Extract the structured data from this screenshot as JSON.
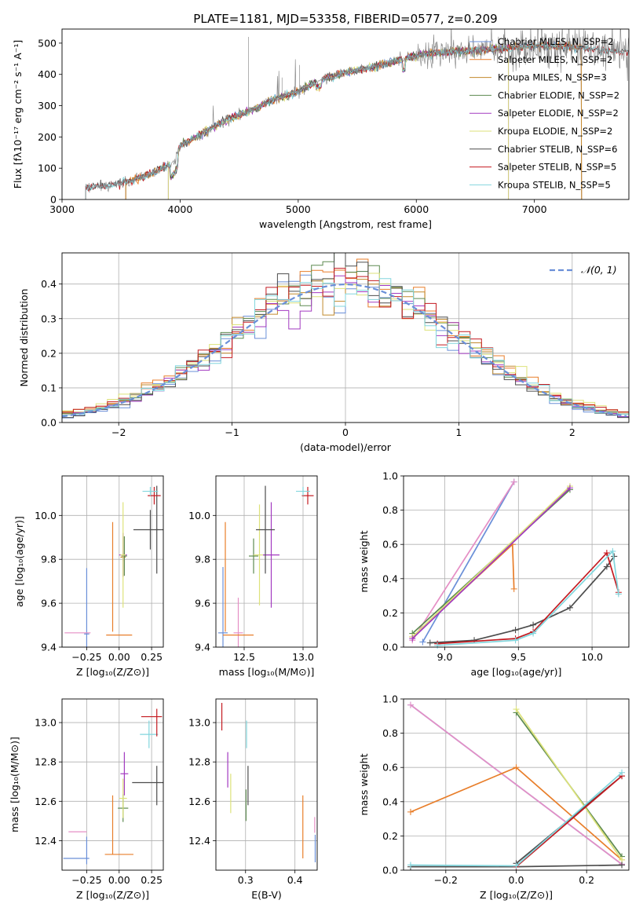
{
  "colors": {
    "c_miles": "#6a8fd8",
    "s_miles": "#e87e2a",
    "k_miles": "#c28a2c",
    "c_elodie": "#5d8a50",
    "s_elodie": "#a23ac0",
    "k_elodie": "#dde27a",
    "c_stelib": "#4d4d4d",
    "s_stelib": "#c41a20",
    "k_stelib": "#82d6dd",
    "pink": "#e58fc5",
    "gauss": "#6a8fd8"
  },
  "chart_data": [
    {
      "id": "spectrum",
      "type": "line",
      "title": "PLATE=1181, MJD=53358, FIBERID=0577, z=0.209",
      "xlabel": "wavelength [Angstrom, rest frame]",
      "ylabel": "Flux [fλ10⁻¹⁷ erg cm⁻² s⁻¹ A⁻¹]",
      "xlim": [
        3000,
        7800
      ],
      "ylim": [
        0,
        545
      ],
      "xticks": [
        "3000",
        "4000",
        "5000",
        "6000",
        "7000"
      ],
      "yticks": [
        "0",
        "100",
        "200",
        "300",
        "400",
        "500"
      ],
      "legend": [
        "Chabrier MILES, N_SSP=2",
        "Salpeter MILES, N_SSP=2",
        "Kroupa MILES, N_SSP=3",
        "Chabrier ELODIE, N_SSP=2",
        "Salpeter ELODIE, N_SSP=2",
        "Kroupa ELODIE, N_SSP=2",
        "Chabrier STELIB, N_SSP=6",
        "Salpeter STELIB, N_SSP=5",
        "Kroupa STELIB, N_SSP=5"
      ],
      "legend_position": "right",
      "continuum": {
        "x": [
          3200,
          3400,
          3600,
          3800,
          3950,
          4000,
          4200,
          4400,
          4600,
          4800,
          5000,
          5200,
          5400,
          5600,
          5800,
          6000,
          6200,
          6400,
          6600,
          6800,
          7000,
          7200,
          7400,
          7500,
          7800
        ],
        "y": [
          38,
          45,
          62,
          90,
          120,
          170,
          215,
          255,
          285,
          320,
          345,
          385,
          405,
          420,
          440,
          460,
          470,
          475,
          480,
          485,
          490,
          490,
          485,
          480,
          470
        ]
      }
    },
    {
      "id": "residuals",
      "type": "histogram",
      "xlabel": "(data-model)/error",
      "ylabel": "Normed distribution",
      "xlim": [
        -2.5,
        2.5
      ],
      "ylim": [
        0,
        0.49
      ],
      "xticks": [
        "−2",
        "−1",
        "0",
        "1",
        "2"
      ],
      "yticks": [
        "0.0",
        "0.1",
        "0.2",
        "0.3",
        "0.4"
      ],
      "legend": [
        "𝒩(0, 1)"
      ],
      "legend_position": "top-right",
      "bin_width": 0.1
    },
    {
      "id": "age_vs_Z",
      "type": "errorbar",
      "xlabel": "Z [log₁₀(Z/Z⊙)]",
      "ylabel": "age  [log₁₀(age/yr)]",
      "xlim": [
        -0.44,
        0.34
      ],
      "ylim": [
        9.4,
        10.18
      ],
      "xticks": [
        "−0.25",
        "0.00",
        "0.25"
      ],
      "xtick_values": [
        -0.25,
        0.0,
        0.25
      ],
      "yticks": [
        "9.4",
        "9.6",
        "9.8",
        "10.0"
      ],
      "ytick_values": [
        9.4,
        9.6,
        9.8,
        10.0
      ],
      "points": [
        {
          "c": "c_miles",
          "x": -0.25,
          "y": 9.46,
          "xe": 0.02,
          "ye": 0.3
        },
        {
          "c": "pink",
          "x": -0.32,
          "y": 9.465,
          "xe": 0.1,
          "ye": 0.005
        },
        {
          "c": "s_miles",
          "x": 0.0,
          "y": 9.455,
          "xe": 0.1,
          "ye": 0.005
        },
        {
          "c": "s_miles",
          "x": -0.05,
          "y": 9.72,
          "xe": 0.003,
          "ye": 0.25
        },
        {
          "c": "k_miles",
          "x": 0.03,
          "y": 9.81,
          "xe": 0.02,
          "ye": 0.02
        },
        {
          "c": "c_elodie",
          "x": 0.04,
          "y": 9.815,
          "xe": 0.02,
          "ye": 0.09
        },
        {
          "c": "s_elodie",
          "x": 0.03,
          "y": 9.82,
          "xe": 0.03,
          "ye": 0.1
        },
        {
          "c": "k_elodie",
          "x": 0.03,
          "y": 9.82,
          "xe": 0.02,
          "ye": 0.24
        },
        {
          "c": "c_stelib",
          "x": 0.24,
          "y": 9.935,
          "xe": 0.13,
          "ye": 0.09
        },
        {
          "c": "c_stelib",
          "x": 0.29,
          "y": 9.935,
          "xe": 0.01,
          "ye": 0.2
        },
        {
          "c": "s_stelib",
          "x": 0.27,
          "y": 10.09,
          "xe": 0.05,
          "ye": 0.04
        },
        {
          "c": "k_stelib",
          "x": 0.24,
          "y": 10.11,
          "xe": 0.06,
          "ye": 0.02
        }
      ]
    },
    {
      "id": "age_vs_mass",
      "type": "errorbar",
      "xlabel": "mass [log₁₀(M/M⊙)]",
      "ylabel": "",
      "xlim": [
        12.26,
        13.12
      ],
      "ylim": [
        9.4,
        10.18
      ],
      "xticks": [
        "12.5",
        "13.0"
      ],
      "xtick_values": [
        12.5,
        13.0
      ],
      "yticks": [
        "9.4",
        "9.6",
        "9.8",
        "10.0"
      ],
      "ytick_values": [
        9.4,
        9.6,
        9.8,
        10.0
      ],
      "points": [
        {
          "c": "c_miles",
          "x": 12.32,
          "y": 9.465,
          "xe": 0.04,
          "ye": 0.3
        },
        {
          "c": "pink",
          "x": 12.45,
          "y": 9.465,
          "xe": 0.04,
          "ye": 0.16
        },
        {
          "c": "s_miles",
          "x": 12.45,
          "y": 9.455,
          "xe": 0.13,
          "ye": 0.005
        },
        {
          "c": "s_miles",
          "x": 12.34,
          "y": 9.72,
          "xe": 0.003,
          "ye": 0.25
        },
        {
          "c": "c_elodie",
          "x": 12.58,
          "y": 9.815,
          "xe": 0.04,
          "ye": 0.08
        },
        {
          "c": "k_elodie",
          "x": 12.63,
          "y": 9.82,
          "xe": 0.05,
          "ye": 0.23
        },
        {
          "c": "s_elodie",
          "x": 12.73,
          "y": 9.82,
          "xe": 0.07,
          "ye": 0.24
        },
        {
          "c": "c_stelib",
          "x": 12.68,
          "y": 9.935,
          "xe": 0.08,
          "ye": 0.2
        },
        {
          "c": "s_stelib",
          "x": 13.04,
          "y": 10.09,
          "xe": 0.05,
          "ye": 0.04
        },
        {
          "c": "k_stelib",
          "x": 13.0,
          "y": 10.11,
          "xe": 0.06,
          "ye": 0.02
        }
      ]
    },
    {
      "id": "weight_vs_age",
      "type": "line",
      "xlabel": "age  [log₁₀(age/yr)]",
      "ylabel": "mass weight",
      "xlim": [
        8.72,
        10.25
      ],
      "ylim": [
        0,
        1.0
      ],
      "xticks": [
        "9.0",
        "9.5",
        "10.0"
      ],
      "xtick_values": [
        9.0,
        9.5,
        10.0
      ],
      "yticks": [
        "0.0",
        "0.2",
        "0.4",
        "0.6",
        "0.8",
        "1.0"
      ],
      "ytick_values": [
        0,
        0.2,
        0.4,
        0.6,
        0.8,
        1.0
      ],
      "series": [
        {
          "c": "c_miles",
          "x": [
            8.85,
            9.47
          ],
          "y": [
            0.03,
            0.965
          ]
        },
        {
          "c": "pink",
          "x": [
            8.78,
            9.47
          ],
          "y": [
            0.04,
            0.965
          ]
        },
        {
          "c": "s_miles",
          "x": [
            8.78,
            9.46,
            9.47
          ],
          "y": [
            0.06,
            0.6,
            0.34
          ]
        },
        {
          "c": "c_elodie",
          "x": [
            8.78,
            9.85
          ],
          "y": [
            0.08,
            0.92
          ]
        },
        {
          "c": "k_elodie",
          "x": [
            8.78,
            9.85
          ],
          "y": [
            0.06,
            0.94
          ]
        },
        {
          "c": "s_elodie",
          "x": [
            8.78,
            9.85
          ],
          "y": [
            0.05,
            0.93
          ]
        },
        {
          "c": "c_stelib",
          "x": [
            8.9,
            9.2,
            9.48,
            9.6,
            9.85,
            10.1,
            10.15
          ],
          "y": [
            0.025,
            0.04,
            0.1,
            0.13,
            0.23,
            0.47,
            0.53
          ]
        },
        {
          "c": "s_stelib",
          "x": [
            8.95,
            9.48,
            9.6,
            10.1,
            10.18
          ],
          "y": [
            0.02,
            0.05,
            0.09,
            0.55,
            0.32
          ]
        },
        {
          "c": "k_stelib",
          "x": [
            8.95,
            9.48,
            9.6,
            10.14,
            10.18
          ],
          "y": [
            0.01,
            0.04,
            0.08,
            0.56,
            0.31
          ]
        }
      ]
    },
    {
      "id": "mass_vs_Z",
      "type": "errorbar",
      "xlabel": "Z [log₁₀(Z/Z⊙)]",
      "ylabel": "mass [log₁₀(M/M⊙)]",
      "xlim": [
        -0.44,
        0.34
      ],
      "ylim": [
        12.25,
        13.12
      ],
      "xticks": [
        "−0.25",
        "0.00",
        "0.25"
      ],
      "xtick_values": [
        -0.25,
        0.0,
        0.25
      ],
      "yticks": [
        "12.4",
        "12.6",
        "12.8",
        "13.0"
      ],
      "ytick_values": [
        12.4,
        12.6,
        12.8,
        13.0
      ],
      "points": [
        {
          "c": "c_miles",
          "x": -0.33,
          "y": 12.31,
          "xe": 0.1,
          "ye": 0.005
        },
        {
          "c": "c_miles",
          "x": -0.25,
          "y": 12.35,
          "xe": 0.003,
          "ye": 0.07
        },
        {
          "c": "pink",
          "x": -0.32,
          "y": 12.445,
          "xe": 0.07,
          "ye": 0.005
        },
        {
          "c": "s_miles",
          "x": 0.0,
          "y": 12.33,
          "xe": 0.11,
          "ye": 0.005
        },
        {
          "c": "s_miles",
          "x": -0.05,
          "y": 12.48,
          "xe": 0.003,
          "ye": 0.15
        },
        {
          "c": "c_elodie",
          "x": 0.03,
          "y": 12.565,
          "xe": 0.04,
          "ye": 0.07
        },
        {
          "c": "k_elodie",
          "x": 0.03,
          "y": 12.615,
          "xe": 0.03,
          "ye": 0.1
        },
        {
          "c": "s_elodie",
          "x": 0.04,
          "y": 12.74,
          "xe": 0.03,
          "ye": 0.11
        },
        {
          "c": "c_stelib",
          "x": 0.23,
          "y": 12.695,
          "xe": 0.13,
          "ye": 0.005
        },
        {
          "c": "c_stelib",
          "x": 0.29,
          "y": 12.68,
          "xe": 0.003,
          "ye": 0.1
        },
        {
          "c": "k_stelib",
          "x": 0.23,
          "y": 12.94,
          "xe": 0.07,
          "ye": 0.07
        },
        {
          "c": "s_stelib",
          "x": 0.25,
          "y": 13.03,
          "xe": 0.08,
          "ye": 0.005
        },
        {
          "c": "s_stelib",
          "x": 0.29,
          "y": 13.0,
          "xe": 0.003,
          "ye": 0.07
        }
      ]
    },
    {
      "id": "mass_vs_ebv",
      "type": "errorbar",
      "xlabel": "E(B-V)",
      "ylabel": "",
      "xlim": [
        0.24,
        0.445
      ],
      "ylim": [
        12.25,
        13.12
      ],
      "xticks": [
        "0.3",
        "0.4"
      ],
      "xtick_values": [
        0.3,
        0.4
      ],
      "yticks": [
        "12.4",
        "12.6",
        "12.8",
        "13.0"
      ],
      "ytick_values": [
        12.4,
        12.6,
        12.8,
        13.0
      ],
      "points": [
        {
          "c": "s_stelib",
          "x": 0.252,
          "y": 13.03,
          "xe": 0,
          "ye": 0.07
        },
        {
          "c": "s_elodie",
          "x": 0.264,
          "y": 12.76,
          "xe": 0,
          "ye": 0.09
        },
        {
          "c": "k_elodie",
          "x": 0.27,
          "y": 12.64,
          "xe": 0,
          "ye": 0.1
        },
        {
          "c": "k_stelib",
          "x": 0.302,
          "y": 12.94,
          "xe": 0,
          "ye": 0.07
        },
        {
          "c": "c_elodie",
          "x": 0.301,
          "y": 12.58,
          "xe": 0,
          "ye": 0.08
        },
        {
          "c": "c_stelib",
          "x": 0.305,
          "y": 12.68,
          "xe": 0,
          "ye": 0.1
        },
        {
          "c": "s_miles",
          "x": 0.416,
          "y": 12.47,
          "xe": 0,
          "ye": 0.16
        },
        {
          "c": "pink",
          "x": 0.44,
          "y": 12.48,
          "xe": 0,
          "ye": 0.04
        },
        {
          "c": "c_miles",
          "x": 0.441,
          "y": 12.36,
          "xe": 0,
          "ye": 0.07
        }
      ]
    },
    {
      "id": "weight_vs_Z",
      "type": "line",
      "xlabel": "Z [log₁₀(Z/Z⊙)]",
      "ylabel": "mass weight",
      "xlim": [
        -0.32,
        0.32
      ],
      "ylim": [
        0,
        1.0
      ],
      "xticks": [
        "−0.2",
        "0.0",
        "0.2"
      ],
      "xtick_values": [
        -0.2,
        0.0,
        0.2
      ],
      "yticks": [
        "0.0",
        "0.2",
        "0.4",
        "0.6",
        "0.8",
        "1.0"
      ],
      "ytick_values": [
        0,
        0.2,
        0.4,
        0.6,
        0.8,
        1.0
      ],
      "series": [
        {
          "c": "c_miles",
          "x": [
            -0.3,
            0.3
          ],
          "y": [
            0.965,
            0.035
          ]
        },
        {
          "c": "pink",
          "x": [
            -0.3,
            0.3
          ],
          "y": [
            0.965,
            0.035
          ]
        },
        {
          "c": "s_miles",
          "x": [
            -0.3,
            0.0,
            0.3
          ],
          "y": [
            0.34,
            0.6,
            0.06
          ]
        },
        {
          "c": "c_elodie",
          "x": [
            0.0,
            0.3
          ],
          "y": [
            0.92,
            0.08
          ]
        },
        {
          "c": "k_elodie",
          "x": [
            0.0,
            0.3
          ],
          "y": [
            0.94,
            0.06
          ]
        },
        {
          "c": "c_stelib",
          "x": [
            0.0,
            0.3
          ],
          "y": [
            0.04,
            0.55
          ]
        },
        {
          "c": "c_stelib",
          "x": [
            -0.3,
            0.0,
            0.3
          ],
          "y": [
            0.02,
            0.02,
            0.03
          ]
        },
        {
          "c": "s_stelib",
          "x": [
            0.0,
            0.3
          ],
          "y": [
            0.02,
            0.55
          ]
        },
        {
          "c": "k_stelib",
          "x": [
            -0.3,
            0.0,
            0.3
          ],
          "y": [
            0.03,
            0.025,
            0.57
          ]
        }
      ]
    }
  ]
}
